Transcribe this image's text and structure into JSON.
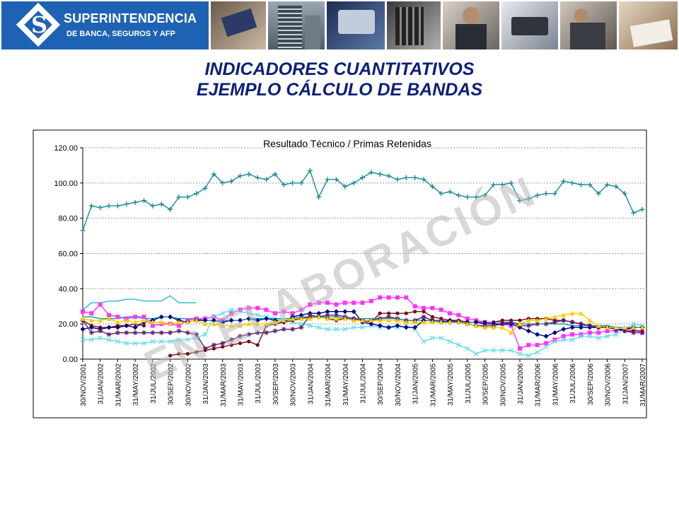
{
  "header": {
    "logo_name": "SUPERINTENDENCIA",
    "logo_sub": "DE BANCA, SEGUROS Y AFP",
    "photo_icons": [
      "credit-card-photo-icon",
      "office-building-photo-icon",
      "enter-key-photo-icon",
      "calculator-photo-icon",
      "businessman-photo-icon",
      "charts-photo-icon",
      "card-terminal-photo-icon",
      "handshake-photo-icon",
      "meeting-photo-icon",
      "signing-photo-icon"
    ]
  },
  "page": {
    "title_line1": "INDICADORES CUANTITATIVOS",
    "title_line2": "EJEMPLO CÁLCULO DE BANDAS",
    "watermark": "EN ELABORACIÓN"
  },
  "colors": {
    "brand_blue": "#1e63b3",
    "title_navy": "#0c1f7a"
  },
  "chart_data": {
    "type": "line",
    "title": "Resultado Técnico / Primas Retenidas",
    "xlabel": "",
    "ylabel": "",
    "ylim": [
      0,
      120
    ],
    "yticks": [
      "0.00",
      "20.00",
      "40.00",
      "60.00",
      "80.00",
      "100.00",
      "120.00"
    ],
    "grid": "horizontal dashed",
    "legend": "none",
    "x_count": 65,
    "x_tick_labels": [
      "30/NOV/2001",
      "31/JAN/2002",
      "31/MAR/2002",
      "31/MAY/2002",
      "31/JUL/2002",
      "30/SEP/2002",
      "30/NOV/2002",
      "31/JAN/2003",
      "31/MAR/2003",
      "31/MAY/2003",
      "31/JUL/2003",
      "30/SEP/2003",
      "30/NOV/2003",
      "31/JAN/2004",
      "31/MAR/2004",
      "31/MAY/2004",
      "31/JUL/2004",
      "30/SEP/2004",
      "30/NOV/2004",
      "31/JAN/2005",
      "31/MAR/2005",
      "31/MAY/2005",
      "31/JUL/2005",
      "30/SEP/2005",
      "30/NOV/2005",
      "31/JAN/2006",
      "31/MAR/2006",
      "31/MAY/2006",
      "31/JUL/2006",
      "30/SEP/2006",
      "30/NOV/2006",
      "31/JAN/2007",
      "31/MAR/2007"
    ],
    "series": [
      {
        "color": "#1a8a96",
        "marker": "plus",
        "values": [
          73,
          87,
          86,
          87,
          87,
          88,
          89,
          90,
          87,
          88,
          85,
          92,
          92,
          94,
          97,
          105,
          100,
          101,
          104,
          105,
          103,
          102,
          105,
          99,
          100,
          100,
          107,
          92,
          102,
          102,
          98,
          100,
          103,
          106,
          105,
          104,
          102,
          103,
          103,
          102,
          98,
          94,
          95,
          93,
          92,
          92,
          93,
          99,
          99,
          100,
          90,
          91,
          93,
          94,
          94,
          101,
          100,
          99,
          99,
          94,
          99,
          98,
          94,
          83,
          85
        ]
      },
      {
        "color": "#ff33ff",
        "marker": "square",
        "values": [
          27,
          26,
          31,
          25,
          24,
          23,
          24,
          24,
          19,
          20,
          20,
          19,
          22,
          23,
          23,
          24,
          22,
          26,
          28,
          29,
          29,
          28,
          26,
          27,
          26,
          28,
          31,
          32,
          32,
          31,
          32,
          32,
          32,
          33,
          35,
          35,
          35,
          35,
          30,
          29,
          29,
          28,
          26,
          25,
          23,
          22,
          21,
          20,
          20,
          19,
          6,
          8,
          8,
          9,
          11,
          13,
          14,
          14,
          15,
          15,
          16,
          16,
          17,
          17,
          15
        ]
      },
      {
        "color": "#22bbdd",
        "marker": "none",
        "values": [
          28,
          32,
          32,
          33,
          33,
          34,
          34,
          33,
          33,
          33,
          36,
          32,
          32,
          32,
          null,
          null,
          null,
          null,
          null,
          null,
          null,
          null,
          null,
          null,
          null,
          null,
          null,
          null,
          null,
          null,
          null,
          null,
          null,
          null,
          null,
          null,
          null,
          null,
          null,
          null,
          null,
          null,
          null,
          null,
          null,
          null,
          null,
          null,
          null,
          null,
          null,
          null,
          null,
          null,
          null,
          null,
          null,
          null,
          null,
          null,
          null,
          null,
          null,
          null,
          null
        ]
      },
      {
        "color": "#66ddee",
        "marker": "x",
        "values": [
          11,
          11,
          12,
          11,
          10,
          9,
          9,
          9,
          10,
          10,
          10,
          11,
          11,
          12,
          14,
          24,
          26,
          28,
          27,
          26,
          25,
          24,
          23,
          22,
          21,
          20,
          19,
          18,
          17,
          17,
          17,
          18,
          18,
          19,
          18,
          18,
          18,
          19,
          17,
          10,
          12,
          12,
          10,
          8,
          6,
          3,
          5,
          5,
          5,
          5,
          3,
          2,
          4,
          7,
          10,
          11,
          11,
          13,
          13,
          12,
          13,
          14,
          17,
          20,
          19
        ]
      },
      {
        "color": "#7a0a10",
        "marker": "circle",
        "values": [
          22,
          19,
          18,
          18,
          19,
          19,
          20,
          19,
          null,
          null,
          2,
          3,
          3,
          4,
          5,
          6,
          7,
          8,
          9,
          10,
          8,
          19,
          20,
          21,
          22,
          23,
          24,
          24,
          23,
          22,
          23,
          23,
          22,
          21,
          26,
          26,
          26,
          26,
          27,
          27,
          24,
          23,
          22,
          22,
          21,
          21,
          21,
          21,
          22,
          22,
          22,
          23,
          23,
          23,
          22,
          22,
          21,
          20,
          19,
          18,
          18,
          17,
          16,
          16,
          16
        ]
      },
      {
        "color": "#000088",
        "marker": "diamond",
        "values": [
          17,
          18,
          17,
          18,
          18,
          19,
          18,
          21,
          22,
          24,
          24,
          22,
          21,
          22,
          22,
          22,
          21,
          22,
          22,
          23,
          22,
          23,
          22,
          21,
          24,
          25,
          26,
          26,
          27,
          27,
          27,
          27,
          21,
          20,
          19,
          18,
          19,
          18,
          18,
          22,
          22,
          21,
          22,
          21,
          21,
          21,
          20,
          20,
          20,
          20,
          18,
          16,
          14,
          13,
          15,
          17,
          18,
          18,
          18,
          18,
          18,
          17,
          17,
          18,
          18
        ]
      },
      {
        "color": "#5a1e6e",
        "marker": "star",
        "values": [
          22,
          15,
          16,
          14,
          15,
          15,
          15,
          15,
          15,
          15,
          15,
          16,
          15,
          14,
          6,
          8,
          9,
          11,
          13,
          14,
          15,
          15,
          16,
          17,
          17,
          18,
          25,
          24,
          25,
          25,
          24,
          23,
          22,
          22,
          23,
          24,
          23,
          22,
          22,
          24,
          22,
          22,
          21,
          21,
          20,
          19,
          19,
          19,
          20,
          21,
          19,
          19,
          20,
          20,
          21,
          22,
          21,
          20,
          19,
          18,
          18,
          17,
          16,
          15,
          15
        ]
      },
      {
        "color": "#ffcc00",
        "marker": "triangle",
        "values": [
          23,
          22,
          22,
          23,
          21,
          22,
          21,
          22,
          21,
          21,
          20,
          21,
          21,
          22,
          20,
          20,
          19,
          19,
          19,
          20,
          20,
          20,
          21,
          22,
          23,
          23,
          23,
          24,
          23,
          23,
          23,
          22,
          22,
          22,
          22,
          22,
          22,
          21,
          21,
          21,
          21,
          21,
          21,
          21,
          20,
          19,
          18,
          18,
          18,
          15,
          20,
          22,
          22,
          23,
          24,
          25,
          26,
          26,
          22,
          19,
          18,
          18,
          18,
          18,
          18
        ]
      },
      {
        "color": "#00a0a0",
        "marker": "none",
        "values": [
          24,
          24,
          23,
          23,
          23,
          24,
          24,
          23,
          23,
          24,
          24,
          23,
          23,
          23,
          22,
          22,
          22,
          22,
          22,
          23,
          23,
          23,
          23,
          23,
          23,
          24,
          24,
          24,
          24,
          24,
          23,
          23,
          23,
          23,
          23,
          23,
          23,
          22,
          22,
          22,
          22,
          21,
          21,
          21,
          21,
          21,
          21,
          21,
          21,
          21,
          20,
          20,
          20,
          20,
          20,
          20,
          19,
          19,
          19,
          19,
          19,
          18,
          18,
          18,
          18
        ]
      }
    ]
  }
}
